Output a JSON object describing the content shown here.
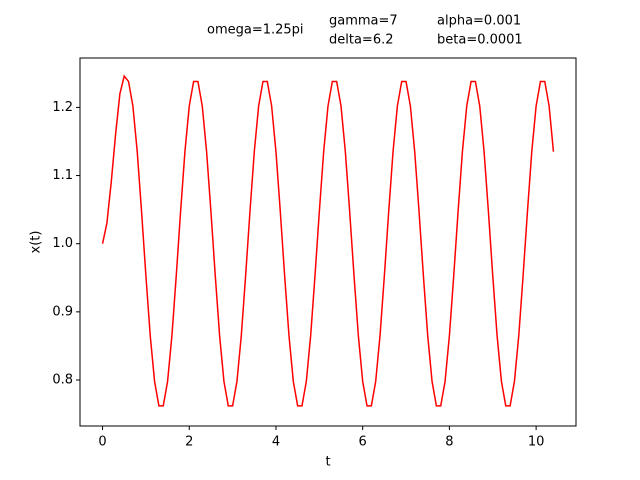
{
  "chart_data": {
    "type": "line",
    "annotations": [
      "omega=1.25pi",
      "gamma=7",
      "delta=6.2",
      "alpha=0.001",
      "beta=0.0001"
    ],
    "xlabel": "t",
    "ylabel": "x(t)",
    "xlim": [
      -0.52,
      10.92
    ],
    "ylim": [
      0.7325,
      1.2725
    ],
    "xticks": [
      0,
      2,
      4,
      6,
      8,
      10
    ],
    "yticks": [
      {
        "value": 0.8,
        "label": "0.8"
      },
      {
        "value": 0.9,
        "label": "0.9"
      },
      {
        "value": 1,
        "label": "1.0"
      },
      {
        "value": 1.1,
        "label": "1.1"
      },
      {
        "value": 1.2,
        "label": "1.2"
      }
    ],
    "x": [
      0,
      0.1,
      0.2,
      0.3,
      0.4,
      0.5,
      0.6,
      0.7,
      0.8,
      0.9,
      1.0,
      1.1,
      1.2,
      1.3,
      1.4,
      1.5,
      1.6,
      1.7,
      1.8,
      1.9,
      2.0,
      2.1,
      2.2,
      2.3,
      2.4,
      2.5,
      2.6,
      2.7,
      2.8,
      2.9,
      3.0,
      3.1,
      3.2,
      3.3,
      3.4,
      3.5,
      3.6,
      3.7,
      3.8,
      3.9,
      4.0,
      4.1,
      4.2,
      4.3,
      4.4,
      4.5,
      4.6,
      4.7,
      4.8,
      4.9,
      5.0,
      5.1,
      5.2,
      5.3,
      5.4,
      5.5,
      5.6,
      5.7,
      5.8,
      5.9,
      6.0,
      6.1,
      6.2,
      6.3,
      6.4,
      6.5,
      6.6,
      6.7,
      6.8,
      6.9,
      7.0,
      7.1,
      7.2,
      7.3,
      7.4,
      7.5,
      7.6,
      7.7,
      7.8,
      7.9,
      8.0,
      8.1,
      8.2,
      8.3,
      8.4,
      8.5,
      8.6,
      8.7,
      8.8,
      8.9,
      9.0,
      9.1,
      9.2,
      9.3,
      9.4,
      9.5,
      9.6,
      9.7,
      9.8,
      9.9,
      10.0,
      10.1,
      10.2,
      10.3,
      10.4
    ],
    "series": [
      {
        "color": "#ff0000",
        "values": [
          1.0,
          1.03,
          1.09,
          1.16,
          1.22,
          1.246,
          1.238,
          1.202,
          1.135,
          1.047,
          0.953,
          0.865,
          0.798,
          0.762,
          0.762,
          0.798,
          0.865,
          0.953,
          1.047,
          1.135,
          1.202,
          1.238,
          1.238,
          1.202,
          1.135,
          1.047,
          0.953,
          0.865,
          0.798,
          0.762,
          0.762,
          0.798,
          0.865,
          0.953,
          1.047,
          1.135,
          1.202,
          1.238,
          1.238,
          1.202,
          1.135,
          1.047,
          0.953,
          0.865,
          0.798,
          0.762,
          0.762,
          0.798,
          0.865,
          0.953,
          1.047,
          1.135,
          1.202,
          1.238,
          1.238,
          1.202,
          1.135,
          1.047,
          0.953,
          0.865,
          0.798,
          0.762,
          0.762,
          0.798,
          0.865,
          0.953,
          1.047,
          1.135,
          1.202,
          1.238,
          1.238,
          1.202,
          1.135,
          1.047,
          0.953,
          0.865,
          0.798,
          0.762,
          0.762,
          0.798,
          0.865,
          0.953,
          1.047,
          1.135,
          1.202,
          1.238,
          1.238,
          1.202,
          1.135,
          1.047,
          0.953,
          0.865,
          0.798,
          0.762,
          0.762,
          0.798,
          0.865,
          0.953,
          1.047,
          1.135,
          1.202,
          1.238,
          1.238,
          1.202,
          1.135
        ]
      }
    ]
  }
}
